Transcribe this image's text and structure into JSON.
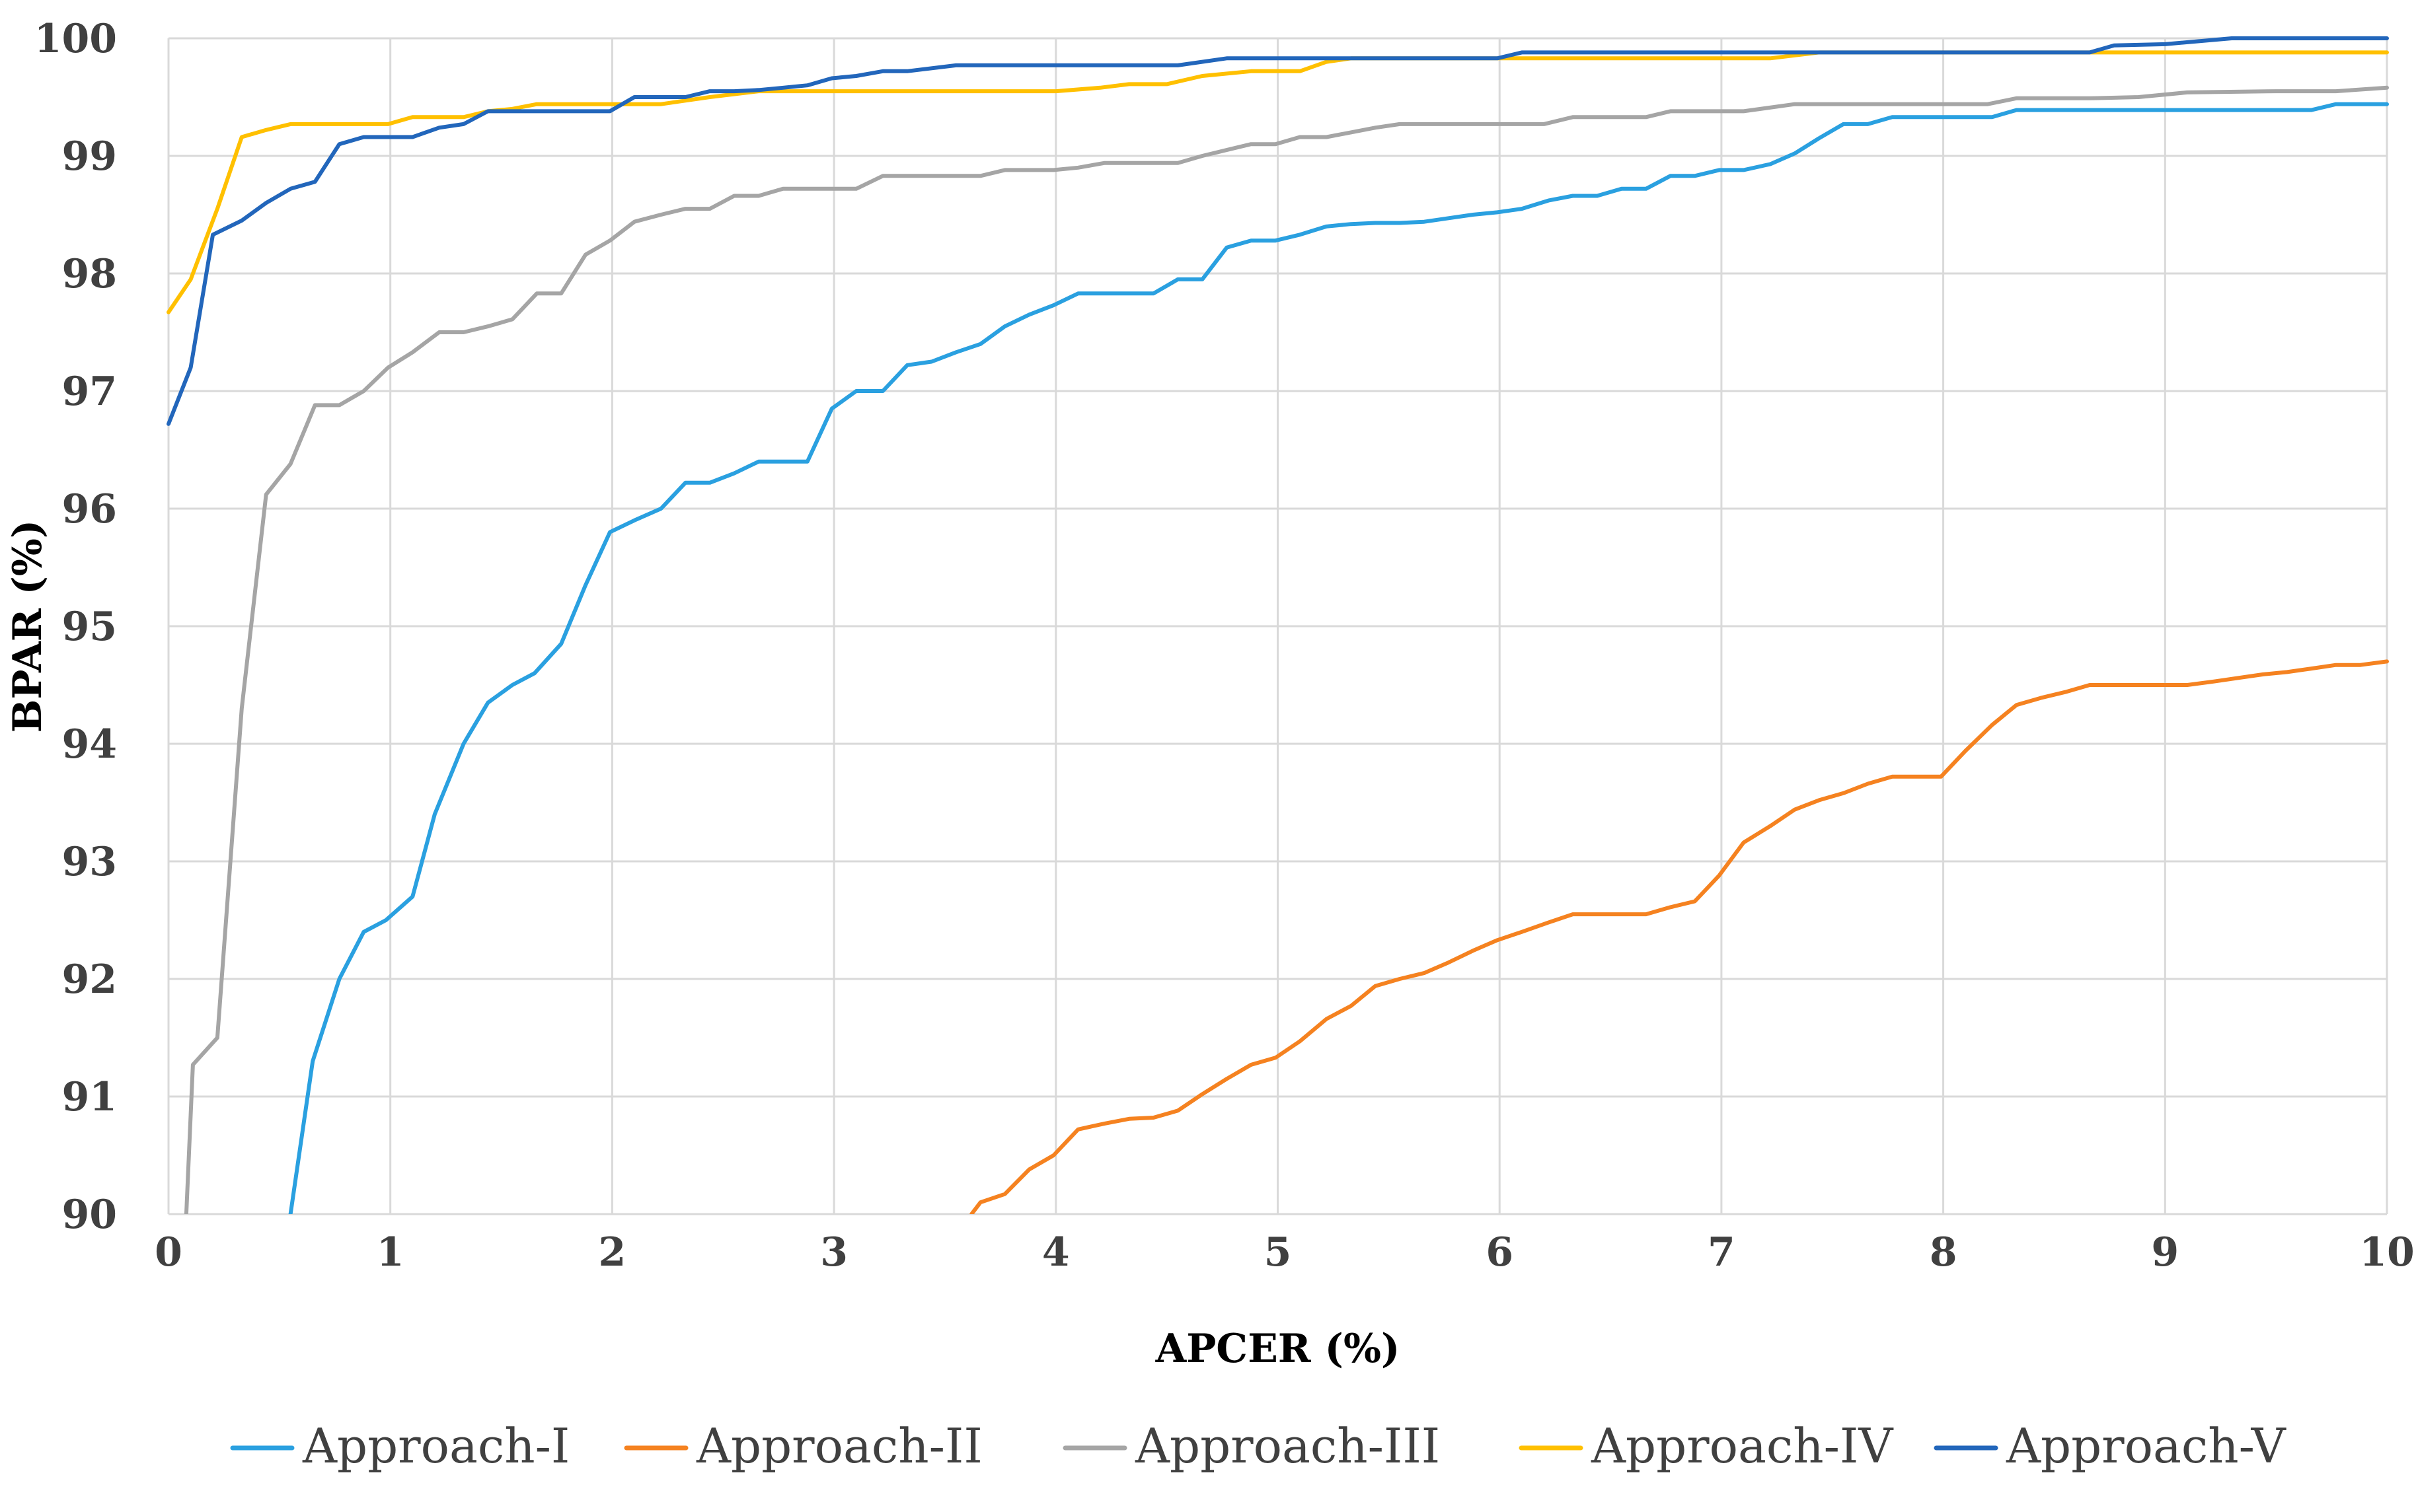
{
  "chart_data": {
    "type": "line",
    "title": "",
    "xlabel": "APCER (%)",
    "ylabel": "BPAR (%)",
    "xlim": [
      0,
      10
    ],
    "ylim": [
      90,
      100
    ],
    "xticks": [
      "0",
      "1",
      "2",
      "3",
      "4",
      "5",
      "6",
      "7",
      "8",
      "9",
      "10"
    ],
    "yticks": [
      "90",
      "91",
      "92",
      "93",
      "94",
      "95",
      "96",
      "97",
      "98",
      "99",
      "100"
    ],
    "grid": true,
    "legend_position": "bottom",
    "series": [
      {
        "name": "Approach-I",
        "color": "#2aa0e0",
        "points": [
          [
            0.55,
            90
          ],
          [
            0.65,
            91.3
          ],
          [
            0.77,
            92.0
          ],
          [
            0.88,
            92.4
          ],
          [
            0.98,
            92.5
          ],
          [
            1.1,
            92.7
          ],
          [
            1.2,
            93.4
          ],
          [
            1.33,
            94.0
          ],
          [
            1.44,
            94.35
          ],
          [
            1.55,
            94.5
          ],
          [
            1.65,
            94.6
          ],
          [
            1.77,
            94.85
          ],
          [
            1.88,
            95.35
          ],
          [
            1.99,
            95.8
          ],
          [
            2.1,
            95.9
          ],
          [
            2.22,
            96.0
          ],
          [
            2.33,
            96.22
          ],
          [
            2.44,
            96.22
          ],
          [
            2.55,
            96.3
          ],
          [
            2.66,
            96.4
          ],
          [
            2.77,
            96.4
          ],
          [
            2.88,
            96.4
          ],
          [
            2.99,
            96.85
          ],
          [
            3.1,
            97.0
          ],
          [
            3.22,
            97.0
          ],
          [
            3.33,
            97.22
          ],
          [
            3.44,
            97.25
          ],
          [
            3.55,
            97.33
          ],
          [
            3.66,
            97.4
          ],
          [
            3.77,
            97.55
          ],
          [
            3.88,
            97.65
          ],
          [
            3.99,
            97.73
          ],
          [
            4.1,
            97.83
          ],
          [
            4.22,
            97.83
          ],
          [
            4.33,
            97.83
          ],
          [
            4.44,
            97.83
          ],
          [
            4.55,
            97.95
          ],
          [
            4.66,
            97.95
          ],
          [
            4.77,
            98.22
          ],
          [
            4.88,
            98.28
          ],
          [
            4.99,
            98.28
          ],
          [
            5.1,
            98.33
          ],
          [
            5.22,
            98.4
          ],
          [
            5.33,
            98.42
          ],
          [
            5.44,
            98.43
          ],
          [
            5.55,
            98.43
          ],
          [
            5.66,
            98.44
          ],
          [
            5.77,
            98.47
          ],
          [
            5.88,
            98.5
          ],
          [
            5.99,
            98.52
          ],
          [
            6.1,
            98.55
          ],
          [
            6.22,
            98.62
          ],
          [
            6.33,
            98.66
          ],
          [
            6.44,
            98.66
          ],
          [
            6.55,
            98.72
          ],
          [
            6.66,
            98.72
          ],
          [
            6.77,
            98.83
          ],
          [
            6.88,
            98.83
          ],
          [
            6.99,
            98.88
          ],
          [
            7.1,
            98.88
          ],
          [
            7.22,
            98.93
          ],
          [
            7.33,
            99.02
          ],
          [
            7.44,
            99.15
          ],
          [
            7.55,
            99.27
          ],
          [
            7.66,
            99.27
          ],
          [
            7.77,
            99.33
          ],
          [
            7.88,
            99.33
          ],
          [
            7.99,
            99.33
          ],
          [
            8.22,
            99.33
          ],
          [
            8.33,
            99.39
          ],
          [
            8.55,
            99.39
          ],
          [
            9.0,
            99.39
          ],
          [
            9.5,
            99.39
          ],
          [
            9.66,
            99.39
          ],
          [
            9.77,
            99.44
          ],
          [
            10,
            99.44
          ]
        ]
      },
      {
        "name": "Approach-II",
        "color": "#f58220",
        "points": [
          [
            3.62,
            90
          ],
          [
            3.66,
            90.1
          ],
          [
            3.77,
            90.17
          ],
          [
            3.88,
            90.38
          ],
          [
            3.99,
            90.5
          ],
          [
            4.1,
            90.72
          ],
          [
            4.22,
            90.77
          ],
          [
            4.33,
            90.81
          ],
          [
            4.44,
            90.82
          ],
          [
            4.55,
            90.88
          ],
          [
            4.66,
            91.02
          ],
          [
            4.77,
            91.15
          ],
          [
            4.88,
            91.27
          ],
          [
            4.99,
            91.33
          ],
          [
            5.1,
            91.47
          ],
          [
            5.22,
            91.66
          ],
          [
            5.33,
            91.77
          ],
          [
            5.44,
            91.94
          ],
          [
            5.55,
            92.0
          ],
          [
            5.66,
            92.05
          ],
          [
            5.77,
            92.14
          ],
          [
            5.88,
            92.24
          ],
          [
            5.99,
            92.33
          ],
          [
            6.1,
            92.4
          ],
          [
            6.22,
            92.48
          ],
          [
            6.33,
            92.55
          ],
          [
            6.44,
            92.55
          ],
          [
            6.55,
            92.55
          ],
          [
            6.66,
            92.55
          ],
          [
            6.77,
            92.61
          ],
          [
            6.88,
            92.66
          ],
          [
            6.99,
            92.88
          ],
          [
            7.1,
            93.16
          ],
          [
            7.22,
            93.3
          ],
          [
            7.33,
            93.44
          ],
          [
            7.44,
            93.52
          ],
          [
            7.55,
            93.58
          ],
          [
            7.66,
            93.66
          ],
          [
            7.77,
            93.72
          ],
          [
            7.88,
            93.72
          ],
          [
            7.99,
            93.72
          ],
          [
            8.1,
            93.94
          ],
          [
            8.22,
            94.16
          ],
          [
            8.33,
            94.33
          ],
          [
            8.44,
            94.39
          ],
          [
            8.55,
            94.44
          ],
          [
            8.66,
            94.5
          ],
          [
            8.77,
            94.5
          ],
          [
            8.88,
            94.5
          ],
          [
            9.0,
            94.5
          ],
          [
            9.1,
            94.5
          ],
          [
            9.22,
            94.53
          ],
          [
            9.33,
            94.56
          ],
          [
            9.44,
            94.59
          ],
          [
            9.55,
            94.61
          ],
          [
            9.66,
            94.64
          ],
          [
            9.77,
            94.67
          ],
          [
            9.88,
            94.67
          ],
          [
            10,
            94.7
          ]
        ]
      },
      {
        "name": "Approach-III",
        "color": "#a5a5a5",
        "points": [
          [
            0.08,
            90
          ],
          [
            0.11,
            91.27
          ],
          [
            0.22,
            91.5
          ],
          [
            0.33,
            94.3
          ],
          [
            0.44,
            96.12
          ],
          [
            0.55,
            96.38
          ],
          [
            0.66,
            96.88
          ],
          [
            0.77,
            96.88
          ],
          [
            0.88,
            97.0
          ],
          [
            0.99,
            97.2
          ],
          [
            1.1,
            97.33
          ],
          [
            1.22,
            97.5
          ],
          [
            1.33,
            97.5
          ],
          [
            1.44,
            97.55
          ],
          [
            1.55,
            97.61
          ],
          [
            1.66,
            97.83
          ],
          [
            1.77,
            97.83
          ],
          [
            1.88,
            98.16
          ],
          [
            1.99,
            98.28
          ],
          [
            2.1,
            98.44
          ],
          [
            2.22,
            98.5
          ],
          [
            2.33,
            98.55
          ],
          [
            2.44,
            98.55
          ],
          [
            2.55,
            98.66
          ],
          [
            2.66,
            98.66
          ],
          [
            2.77,
            98.72
          ],
          [
            2.88,
            98.72
          ],
          [
            2.99,
            98.72
          ],
          [
            3.1,
            98.72
          ],
          [
            3.22,
            98.83
          ],
          [
            3.33,
            98.83
          ],
          [
            3.66,
            98.83
          ],
          [
            3.77,
            98.88
          ],
          [
            3.99,
            98.88
          ],
          [
            4.1,
            98.9
          ],
          [
            4.22,
            98.94
          ],
          [
            4.55,
            98.94
          ],
          [
            4.66,
            99.0
          ],
          [
            4.77,
            99.05
          ],
          [
            4.88,
            99.1
          ],
          [
            4.99,
            99.1
          ],
          [
            5.1,
            99.16
          ],
          [
            5.22,
            99.16
          ],
          [
            5.33,
            99.2
          ],
          [
            5.44,
            99.24
          ],
          [
            5.55,
            99.27
          ],
          [
            6.2,
            99.27
          ],
          [
            6.33,
            99.33
          ],
          [
            6.66,
            99.33
          ],
          [
            6.77,
            99.38
          ],
          [
            7.1,
            99.38
          ],
          [
            7.33,
            99.44
          ],
          [
            8.2,
            99.44
          ],
          [
            8.33,
            99.49
          ],
          [
            8.66,
            99.49
          ],
          [
            8.88,
            99.5
          ],
          [
            9.1,
            99.54
          ],
          [
            9.5,
            99.55
          ],
          [
            9.77,
            99.55
          ],
          [
            10,
            99.58
          ]
        ]
      },
      {
        "name": "Approach-IV",
        "color": "#ffc000",
        "points": [
          [
            0,
            97.67
          ],
          [
            0.1,
            97.95
          ],
          [
            0.22,
            98.55
          ],
          [
            0.33,
            99.16
          ],
          [
            0.44,
            99.22
          ],
          [
            0.55,
            99.27
          ],
          [
            0.99,
            99.27
          ],
          [
            1.1,
            99.33
          ],
          [
            1.33,
            99.33
          ],
          [
            1.44,
            99.38
          ],
          [
            1.55,
            99.4
          ],
          [
            1.66,
            99.44
          ],
          [
            2.22,
            99.44
          ],
          [
            2.33,
            99.47
          ],
          [
            2.44,
            99.5
          ],
          [
            2.66,
            99.55
          ],
          [
            4.0,
            99.55
          ],
          [
            4.2,
            99.58
          ],
          [
            4.33,
            99.61
          ],
          [
            4.5,
            99.61
          ],
          [
            4.66,
            99.68
          ],
          [
            4.88,
            99.72
          ],
          [
            5.1,
            99.72
          ],
          [
            5.22,
            99.8
          ],
          [
            5.33,
            99.83
          ],
          [
            7.22,
            99.83
          ],
          [
            7.44,
            99.88
          ],
          [
            10,
            99.88
          ]
        ]
      },
      {
        "name": "Approach-V",
        "color": "#2266bb",
        "points": [
          [
            0,
            96.72
          ],
          [
            0.1,
            97.2
          ],
          [
            0.2,
            98.33
          ],
          [
            0.33,
            98.45
          ],
          [
            0.44,
            98.6
          ],
          [
            0.55,
            98.72
          ],
          [
            0.66,
            98.78
          ],
          [
            0.77,
            99.1
          ],
          [
            0.88,
            99.16
          ],
          [
            1.1,
            99.16
          ],
          [
            1.22,
            99.24
          ],
          [
            1.33,
            99.27
          ],
          [
            1.44,
            99.38
          ],
          [
            1.99,
            99.38
          ],
          [
            2.1,
            99.5
          ],
          [
            2.33,
            99.5
          ],
          [
            2.44,
            99.55
          ],
          [
            2.55,
            99.55
          ],
          [
            2.66,
            99.56
          ],
          [
            2.77,
            99.58
          ],
          [
            2.88,
            99.6
          ],
          [
            2.99,
            99.66
          ],
          [
            3.1,
            99.68
          ],
          [
            3.22,
            99.72
          ],
          [
            3.33,
            99.72
          ],
          [
            3.55,
            99.77
          ],
          [
            4.55,
            99.77
          ],
          [
            4.77,
            99.83
          ],
          [
            5.99,
            99.83
          ],
          [
            6.1,
            99.88
          ],
          [
            8.66,
            99.88
          ],
          [
            8.77,
            99.94
          ],
          [
            9.0,
            99.95
          ],
          [
            9.3,
            100
          ],
          [
            10,
            100
          ]
        ]
      }
    ]
  }
}
